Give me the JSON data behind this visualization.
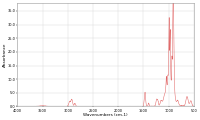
{
  "title": "",
  "xlabel": "Wavenumbers (cm-1)",
  "ylabel": "Absorbance",
  "line_color": "#e06060",
  "background_color": "#ffffff",
  "xmin": 500,
  "xmax": 4000,
  "ymin": 0.0,
  "ymax": 38.0,
  "figsize": [
    2.0,
    1.2
  ],
  "dpi": 100
}
